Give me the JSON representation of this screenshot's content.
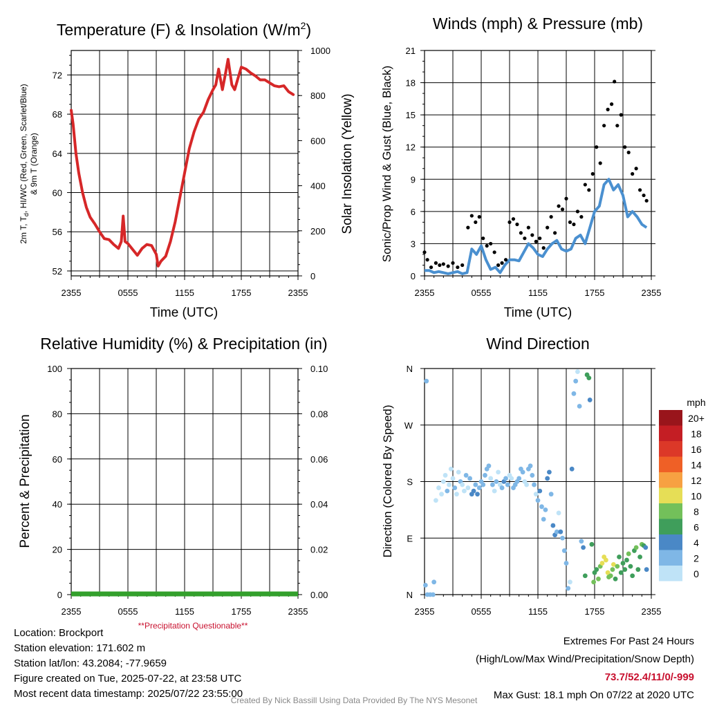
{
  "colors": {
    "temperature": "#d62728",
    "wind": "#4a90d0",
    "gust": "#000000",
    "precip": "#33a02c",
    "questionable": "#c8102e",
    "grid": "#000000"
  },
  "time_ticks": [
    "2355",
    "0555",
    "1155",
    "1755",
    "2355"
  ],
  "footer": {
    "location": "Location: Brockport",
    "elevation": "Station elevation: 171.602 m",
    "latlon": "Station lat/lon: 43.2084; -77.9659",
    "created": "Figure created on Tue, 2025-07-22, at 23:58 UTC",
    "recent": "Most recent data timestamp: 2025/07/22 23:55:00",
    "extremes_title": "Extremes For Past 24 Hours",
    "extremes_subtitle": "(High/Low/Max Wind/Precipitation/Snow Depth)",
    "extremes_values": "73.7/52.4/11/0/-999",
    "max_gust": "Max Gust: 18.1 mph On 07/22 at 2020 UTC",
    "credit": "Created By Nick Bassill Using Data Provided By The NYS Mesonet"
  },
  "chart_data": [
    {
      "id": "temperature",
      "type": "line",
      "title": "Temperature (F) & Insolation (W/m²)",
      "xlabel": "Time (UTC)",
      "ylabel_lines": [
        "2m T, T",
        "d",
        ", HI/WC (Red, Green, Scarlet/Blue)",
        "& 9m T (Orange)"
      ],
      "ylabel2": "Solar Insolation (Yellow)",
      "xlim": [
        0,
        24
      ],
      "ylim": [
        51.5,
        74.5
      ],
      "yticks": [
        52,
        56,
        60,
        64,
        68,
        72
      ],
      "y2lim": [
        0,
        1000
      ],
      "y2ticks": [
        0,
        200,
        400,
        600,
        800,
        1000
      ],
      "series": [
        {
          "x": [
            0.0,
            0.2,
            0.5,
            0.8,
            1.2,
            1.6,
            2.0,
            2.5,
            3.0,
            3.5,
            4.0,
            4.5,
            5.0,
            5.3,
            5.5,
            5.7,
            6.0,
            6.5,
            7.0,
            7.5,
            8.0,
            8.5,
            9.0,
            9.2,
            9.5,
            10.0,
            10.5,
            11.0,
            11.5,
            12.0,
            12.5,
            13.0,
            13.5,
            14.0,
            14.5,
            15.0,
            15.3,
            15.6,
            16.0,
            16.3,
            16.6,
            17.0,
            17.3,
            17.6,
            18.0,
            18.5,
            19.0,
            19.5,
            20.0,
            20.5,
            21.0,
            21.5,
            22.0,
            22.5,
            23.0,
            23.5
          ],
          "y": [
            68.4,
            67.0,
            64.0,
            62.0,
            60.0,
            58.5,
            57.5,
            56.8,
            56.0,
            55.3,
            55.2,
            54.7,
            54.3,
            55.0,
            57.6,
            55.0,
            54.8,
            54.2,
            53.6,
            54.3,
            54.7,
            54.6,
            53.7,
            52.5,
            53.0,
            53.5,
            55.0,
            57.0,
            59.5,
            62.0,
            64.5,
            66.2,
            67.5,
            68.2,
            69.5,
            70.5,
            71.0,
            72.6,
            70.5,
            72.0,
            73.6,
            71.0,
            70.5,
            71.5,
            72.8,
            72.6,
            72.2,
            71.9,
            71.5,
            71.5,
            71.2,
            70.9,
            70.8,
            70.9,
            70.3,
            70.0
          ]
        }
      ]
    },
    {
      "id": "winds",
      "type": "scatter",
      "title": "Winds (mph) & Pressure (mb)",
      "xlabel": "Time (UTC)",
      "ylabel": "Sonic/Prop Wind & Gust (Blue, Black)",
      "xlim": [
        0,
        24
      ],
      "ylim": [
        0,
        21
      ],
      "yticks": [
        0,
        3,
        6,
        9,
        12,
        15,
        18,
        21
      ],
      "wind": {
        "x": [
          0.0,
          0.5,
          1.0,
          1.5,
          2.0,
          2.5,
          3.0,
          3.5,
          4.0,
          4.5,
          5.0,
          5.5,
          6.0,
          6.5,
          7.0,
          7.5,
          8.0,
          8.5,
          9.0,
          9.5,
          10.0,
          10.5,
          11.0,
          11.5,
          12.0,
          12.5,
          13.0,
          13.5,
          14.0,
          14.5,
          15.0,
          15.5,
          16.0,
          16.5,
          17.0,
          17.5,
          18.0,
          18.5,
          19.0,
          19.5,
          20.0,
          20.5,
          21.0,
          21.5,
          22.0,
          22.5,
          23.0,
          23.5
        ],
        "y": [
          0.5,
          0.5,
          0.3,
          0.4,
          0.3,
          0.2,
          0.3,
          0.4,
          0.2,
          0.3,
          2.5,
          2.0,
          2.8,
          1.5,
          0.6,
          0.8,
          0.3,
          1.0,
          1.5,
          1.5,
          1.4,
          2.2,
          3.0,
          2.6,
          2.0,
          1.8,
          2.5,
          3.0,
          3.3,
          2.5,
          2.3,
          2.5,
          3.5,
          3.8,
          3.0,
          4.5,
          6.0,
          6.5,
          8.5,
          9.0,
          8.0,
          8.5,
          7.5,
          5.5,
          6.0,
          5.5,
          4.8,
          4.5
        ]
      },
      "gust": {
        "x": [
          0.0,
          0.3,
          0.7,
          1.2,
          1.6,
          2.0,
          2.5,
          3.0,
          3.5,
          4.0,
          4.6,
          5.0,
          5.4,
          5.8,
          6.2,
          6.6,
          7.0,
          7.4,
          7.8,
          8.2,
          8.6,
          9.0,
          9.4,
          9.8,
          10.2,
          10.6,
          11.0,
          11.4,
          11.8,
          12.2,
          12.6,
          13.0,
          13.4,
          13.8,
          14.2,
          14.6,
          15.0,
          15.4,
          15.8,
          16.2,
          16.6,
          17.0,
          17.4,
          17.8,
          18.2,
          18.6,
          19.0,
          19.4,
          19.8,
          20.1,
          20.4,
          20.8,
          21.2,
          21.6,
          22.0,
          22.4,
          22.8,
          23.2,
          23.5
        ],
        "y": [
          2.2,
          1.5,
          0.8,
          1.2,
          1.0,
          1.1,
          0.9,
          1.2,
          0.8,
          1.0,
          4.5,
          5.6,
          5.0,
          5.5,
          3.5,
          2.8,
          3.0,
          2.2,
          1.0,
          1.2,
          1.5,
          5.0,
          5.3,
          4.8,
          4.0,
          3.5,
          4.5,
          3.8,
          3.2,
          3.5,
          2.6,
          4.5,
          5.5,
          4.0,
          6.5,
          6.2,
          7.2,
          5.0,
          4.8,
          6.0,
          5.5,
          8.5,
          8.0,
          9.5,
          12.0,
          10.5,
          14.0,
          15.5,
          16.0,
          18.1,
          14.0,
          15.0,
          12.0,
          11.5,
          9.5,
          10.0,
          8.0,
          7.5,
          7.0
        ]
      }
    },
    {
      "id": "humidity",
      "type": "line",
      "title": "Relative Humidity (%) & Precipitation (in)",
      "ylabel": "Percent & Precipitation",
      "xlim": [
        0,
        24
      ],
      "ylim": [
        0,
        100
      ],
      "yticks": [
        0,
        20,
        40,
        60,
        80,
        100
      ],
      "y2lim": [
        0,
        0.1
      ],
      "y2ticks": [
        "0.00",
        "0.02",
        "0.04",
        "0.06",
        "0.08",
        "0.10"
      ],
      "precip": [
        0,
        0
      ],
      "note": "**Precipitation Questionable**"
    },
    {
      "id": "wind_direction",
      "type": "scatter",
      "title": "Wind Direction",
      "ylabel": "Direction (Colored By Speed)",
      "xlim": [
        0,
        24
      ],
      "yticks": [
        "N",
        "E",
        "S",
        "W",
        "N"
      ],
      "legend_title": "mph",
      "legend_labels": [
        "20+",
        "18",
        "16",
        "14",
        "12",
        "10",
        "8",
        "6",
        "4",
        "2",
        "0"
      ],
      "legend_colors": [
        "#99151b",
        "#c41e24",
        "#dc3828",
        "#ef6026",
        "#f7a142",
        "#e6de56",
        "#73c05a",
        "#3f9e5b",
        "#4a88c6",
        "#7fb7e6",
        "#bfe3f7"
      ],
      "points": [
        [
          0.1,
          15,
          1
        ],
        [
          0.2,
          340,
          1
        ],
        [
          0.3,
          0,
          1
        ],
        [
          0.6,
          0,
          1
        ],
        [
          0.9,
          0,
          2
        ],
        [
          1.0,
          20,
          1
        ],
        [
          1.2,
          150,
          0
        ],
        [
          1.5,
          170,
          0
        ],
        [
          1.8,
          160,
          0
        ],
        [
          2.0,
          180,
          0
        ],
        [
          2.2,
          190,
          0
        ],
        [
          2.4,
          165,
          1
        ],
        [
          2.6,
          175,
          0
        ],
        [
          2.8,
          200,
          0
        ],
        [
          3.0,
          185,
          0
        ],
        [
          3.2,
          170,
          1
        ],
        [
          3.4,
          160,
          0
        ],
        [
          3.6,
          195,
          0
        ],
        [
          3.8,
          180,
          1
        ],
        [
          4.0,
          175,
          0
        ],
        [
          4.2,
          165,
          0
        ],
        [
          4.4,
          190,
          1
        ],
        [
          4.6,
          170,
          0
        ],
        [
          4.8,
          185,
          1
        ],
        [
          5.0,
          160,
          3
        ],
        [
          5.2,
          165,
          3
        ],
        [
          5.4,
          175,
          2
        ],
        [
          5.6,
          160,
          4
        ],
        [
          5.8,
          170,
          2
        ],
        [
          6.0,
          180,
          1
        ],
        [
          6.2,
          175,
          1
        ],
        [
          6.4,
          190,
          1
        ],
        [
          6.6,
          200,
          1
        ],
        [
          6.8,
          205,
          1
        ],
        [
          7.0,
          185,
          0
        ],
        [
          7.2,
          175,
          1
        ],
        [
          7.4,
          165,
          0
        ],
        [
          7.6,
          180,
          1
        ],
        [
          7.8,
          195,
          0
        ],
        [
          8.0,
          175,
          0
        ],
        [
          8.2,
          170,
          1
        ],
        [
          8.4,
          180,
          3
        ],
        [
          8.6,
          185,
          2
        ],
        [
          8.8,
          175,
          1
        ],
        [
          9.0,
          190,
          0
        ],
        [
          9.2,
          185,
          0
        ],
        [
          9.4,
          170,
          1
        ],
        [
          9.6,
          175,
          1
        ],
        [
          9.8,
          180,
          1
        ],
        [
          10.0,
          185,
          1
        ],
        [
          10.2,
          200,
          1
        ],
        [
          10.4,
          195,
          1
        ],
        [
          10.6,
          180,
          0
        ],
        [
          10.8,
          175,
          0
        ],
        [
          11.0,
          200,
          2
        ],
        [
          11.2,
          205,
          1
        ],
        [
          11.4,
          190,
          1
        ],
        [
          11.6,
          175,
          1
        ],
        [
          11.8,
          160,
          0
        ],
        [
          12.0,
          150,
          1
        ],
        [
          12.2,
          165,
          3
        ],
        [
          12.4,
          140,
          2
        ],
        [
          12.6,
          120,
          1
        ],
        [
          12.8,
          135,
          2
        ],
        [
          13.0,
          185,
          3
        ],
        [
          13.2,
          195,
          4
        ],
        [
          13.4,
          160,
          2
        ],
        [
          13.6,
          110,
          3
        ],
        [
          13.8,
          95,
          3
        ],
        [
          14.0,
          100,
          1
        ],
        [
          14.2,
          130,
          0
        ],
        [
          14.4,
          100,
          4
        ],
        [
          14.6,
          90,
          1
        ],
        [
          14.8,
          70,
          2
        ],
        [
          15.0,
          50,
          1
        ],
        [
          15.2,
          10,
          1
        ],
        [
          15.4,
          20,
          0
        ],
        [
          15.6,
          200,
          3
        ],
        [
          15.8,
          320,
          2
        ],
        [
          16.0,
          340,
          1
        ],
        [
          16.2,
          355,
          0
        ],
        [
          16.4,
          300,
          1
        ],
        [
          16.6,
          85,
          2
        ],
        [
          16.8,
          75,
          3
        ],
        [
          17.0,
          30,
          5
        ],
        [
          17.2,
          350,
          5
        ],
        [
          17.4,
          345,
          6
        ],
        [
          17.5,
          310,
          4
        ],
        [
          17.7,
          80,
          5
        ],
        [
          17.9,
          20,
          7
        ],
        [
          18.0,
          35,
          5
        ],
        [
          18.2,
          40,
          6
        ],
        [
          18.4,
          25,
          7
        ],
        [
          18.6,
          45,
          8
        ],
        [
          18.8,
          50,
          9
        ],
        [
          19.0,
          60,
          9
        ],
        [
          19.2,
          55,
          9
        ],
        [
          19.4,
          35,
          9
        ],
        [
          19.5,
          28,
          8
        ],
        [
          19.7,
          30,
          8
        ],
        [
          19.9,
          40,
          7
        ],
        [
          20.0,
          48,
          9
        ],
        [
          20.2,
          25,
          6
        ],
        [
          20.4,
          45,
          7
        ],
        [
          20.6,
          60,
          5
        ],
        [
          20.8,
          35,
          6
        ],
        [
          21.0,
          50,
          6
        ],
        [
          21.2,
          40,
          5
        ],
        [
          21.4,
          55,
          6
        ],
        [
          21.6,
          65,
          7
        ],
        [
          21.8,
          45,
          6
        ],
        [
          22.0,
          30,
          5
        ],
        [
          22.2,
          70,
          6
        ],
        [
          22.4,
          75,
          7
        ],
        [
          22.6,
          40,
          5
        ],
        [
          22.8,
          60,
          6
        ],
        [
          23.0,
          80,
          7
        ],
        [
          23.2,
          78,
          6
        ],
        [
          23.4,
          75,
          4
        ],
        [
          23.5,
          40,
          4
        ]
      ]
    }
  ]
}
